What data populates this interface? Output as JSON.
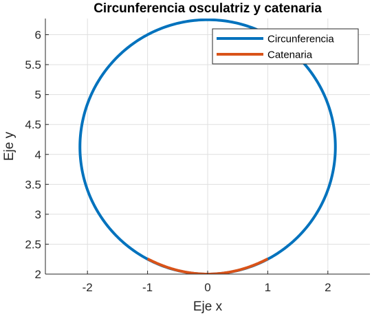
{
  "chart_data": {
    "type": "line",
    "title": "Circunferencia osculatriz y catenaria",
    "xlabel": "Eje x",
    "ylabel": "Eje y",
    "xlim": [
      -2.7,
      2.7
    ],
    "ylim": [
      2.0,
      6.27
    ],
    "xticks": [
      -2,
      -1,
      0,
      1,
      2
    ],
    "xtick_labels": [
      "-2",
      "-1",
      "0",
      "1",
      "2"
    ],
    "yticks": [
      2,
      2.5,
      3,
      3.5,
      4,
      4.5,
      5,
      5.5,
      6
    ],
    "ytick_labels": [
      "2",
      "2.5",
      "3",
      "3.5",
      "4",
      "4.5",
      "5",
      "5.5",
      "6"
    ],
    "grid": true,
    "legend_position": "top-right",
    "series": [
      {
        "name": "Circunferencia",
        "kind": "circle",
        "center": [
          0,
          4.125
        ],
        "radius": 2.125,
        "color": "#0072bd"
      },
      {
        "name": "Catenaria",
        "kind": "function",
        "function": "y = 2*cosh(x/2)",
        "x_range": [
          -1,
          1
        ],
        "color": "#d95319"
      }
    ],
    "colors": {
      "axis": "#262626",
      "grid": "#dfdfdf",
      "background": "#ffffff"
    }
  }
}
